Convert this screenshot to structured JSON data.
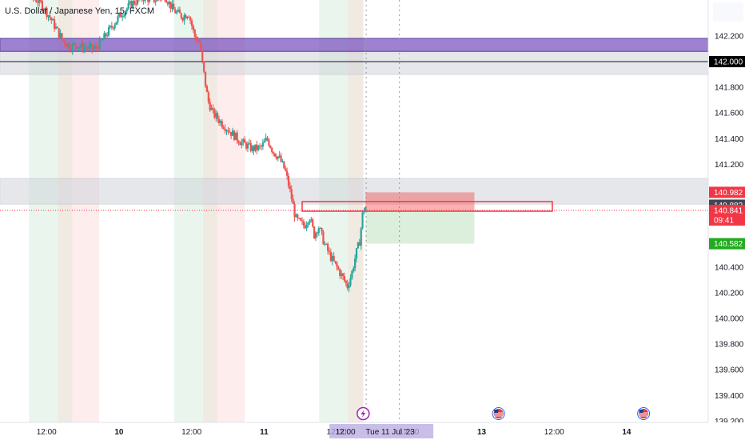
{
  "title": "U.S. Dollar / Japanese Yen, 15, FXCM",
  "colors": {
    "up": "#26a69a",
    "down": "#ef5350",
    "purple": "#7e57c2",
    "zone_gray": "#d1d4dc",
    "green_band": "#e6f4ea",
    "red_band": "#fdeaea",
    "tan_band": "#efe6dd",
    "tag_red": "#f23645",
    "tag_dark": "#434651",
    "tag_green": "#22ab20",
    "tag_black": "#000000",
    "event_purple": "#9c27b0"
  },
  "price_tags": [
    {
      "value": 142.0,
      "label": "142.000",
      "color_key": "tag_black"
    },
    {
      "value": 140.982,
      "label": "140.982",
      "color_key": "tag_red"
    },
    {
      "value": 140.882,
      "label": "140.882",
      "color_key": "tag_dark"
    },
    {
      "value": 140.841,
      "label": "140.841",
      "sub": "09:41",
      "color_key": "tag_red"
    },
    {
      "value": 140.582,
      "label": "140.582",
      "color_key": "tag_green"
    }
  ],
  "crosshair_time_label": "Tue 11 Jul '23",
  "x_label_12_00": "12:00",
  "chart_data": {
    "type": "candlestick",
    "title": "U.S. Dollar / Japanese Yen, 15, FXCM",
    "x_ticks": [
      {
        "h": 12,
        "label": "12:00"
      },
      {
        "h": 24,
        "label": "10",
        "bold": true
      },
      {
        "h": 36,
        "label": "12:00"
      },
      {
        "h": 48,
        "label": "11",
        "bold": true
      },
      {
        "h": 60,
        "label": "12:00"
      },
      {
        "h": 72,
        "label": "12:00"
      },
      {
        "h": 84,
        "label": "13",
        "bold": true
      },
      {
        "h": 96,
        "label": "12:00"
      },
      {
        "h": 108,
        "label": "14",
        "bold": true
      }
    ],
    "x_range_hours": [
      4.3,
      121.5
    ],
    "y_ticks": [
      142.2,
      142.0,
      141.8,
      141.6,
      141.4,
      141.2,
      140.4,
      140.2,
      140.0,
      139.8,
      139.6,
      139.4,
      139.2
    ],
    "y_range": [
      139.19,
      142.48
    ],
    "zones": [
      {
        "kind": "purple",
        "from": 142.08,
        "to": 142.18
      },
      {
        "kind": "gray",
        "from": 141.9,
        "to": 142.07
      },
      {
        "kind": "gray",
        "from": 140.89,
        "to": 141.09
      }
    ],
    "horizontal_lines": [
      {
        "value": 142.0,
        "style": "solid"
      },
      {
        "value": 140.841,
        "style": "dotted"
      }
    ],
    "session_bands": [
      {
        "from": 9.1,
        "to": 13.9,
        "kind": "green"
      },
      {
        "from": 13.9,
        "to": 16.3,
        "kind": "tan"
      },
      {
        "from": 16.3,
        "to": 20.7,
        "kind": "red"
      },
      {
        "from": 33.1,
        "to": 37.9,
        "kind": "green"
      },
      {
        "from": 37.9,
        "to": 40.3,
        "kind": "tan"
      },
      {
        "from": 40.3,
        "to": 44.8,
        "kind": "red"
      },
      {
        "from": 57.1,
        "to": 61.9,
        "kind": "green"
      },
      {
        "from": 61.9,
        "to": 64.4,
        "kind": "tan"
      }
    ],
    "vertical_lines": [
      {
        "h": 64.9,
        "style": "dotted",
        "note": "cursor"
      },
      {
        "h": 70.4,
        "style": "dotted"
      }
    ],
    "position": {
      "from_h": 64.8,
      "to_h": 82.8,
      "entry": 140.841,
      "stop": 140.982,
      "target": 140.582
    },
    "rect_box": {
      "from_h": 54.3,
      "to_h": 95.7,
      "top": 140.91,
      "bottom": 140.835
    },
    "events": [
      {
        "h": 64.4,
        "icon": "lightning"
      },
      {
        "h": 86.8,
        "icon": "us-flag"
      },
      {
        "h": 110.8,
        "icon": "us-flag"
      }
    ],
    "price_path": [
      [
        4.3,
        142.55
      ],
      [
        7,
        142.6
      ],
      [
        9,
        142.52
      ],
      [
        11,
        142.46
      ],
      [
        12.5,
        142.35
      ],
      [
        14,
        142.22
      ],
      [
        15,
        142.15
      ],
      [
        16,
        142.12
      ],
      [
        17,
        142.13
      ],
      [
        18.5,
        142.11
      ],
      [
        20,
        142.1
      ],
      [
        21,
        142.15
      ],
      [
        22,
        142.22
      ],
      [
        24,
        142.35
      ],
      [
        26,
        142.45
      ],
      [
        28,
        142.5
      ],
      [
        30,
        142.48
      ],
      [
        31.5,
        142.52
      ],
      [
        33,
        142.4
      ],
      [
        34.5,
        142.35
      ],
      [
        35.5,
        142.38
      ],
      [
        36.5,
        142.2
      ],
      [
        37.3,
        142.15
      ],
      [
        38,
        141.92
      ],
      [
        38.7,
        141.7
      ],
      [
        39.5,
        141.6
      ],
      [
        41,
        141.52
      ],
      [
        42.5,
        141.45
      ],
      [
        44,
        141.38
      ],
      [
        45,
        141.35
      ],
      [
        46,
        141.32
      ],
      [
        47.5,
        141.33
      ],
      [
        48.5,
        141.4
      ],
      [
        49.5,
        141.3
      ],
      [
        50.5,
        141.25
      ],
      [
        51.5,
        141.15
      ],
      [
        52.5,
        140.95
      ],
      [
        53.2,
        140.78
      ],
      [
        53.8,
        140.75
      ],
      [
        54.7,
        140.72
      ],
      [
        55.5,
        140.8
      ],
      [
        56.3,
        140.65
      ],
      [
        57,
        140.72
      ],
      [
        58,
        140.58
      ],
      [
        59,
        140.48
      ],
      [
        60,
        140.4
      ],
      [
        61,
        140.32
      ],
      [
        61.8,
        140.25
      ],
      [
        62.5,
        140.35
      ],
      [
        63.2,
        140.5
      ],
      [
        63.8,
        140.6
      ],
      [
        64.4,
        140.85
      ],
      [
        64.9,
        140.87
      ]
    ]
  }
}
